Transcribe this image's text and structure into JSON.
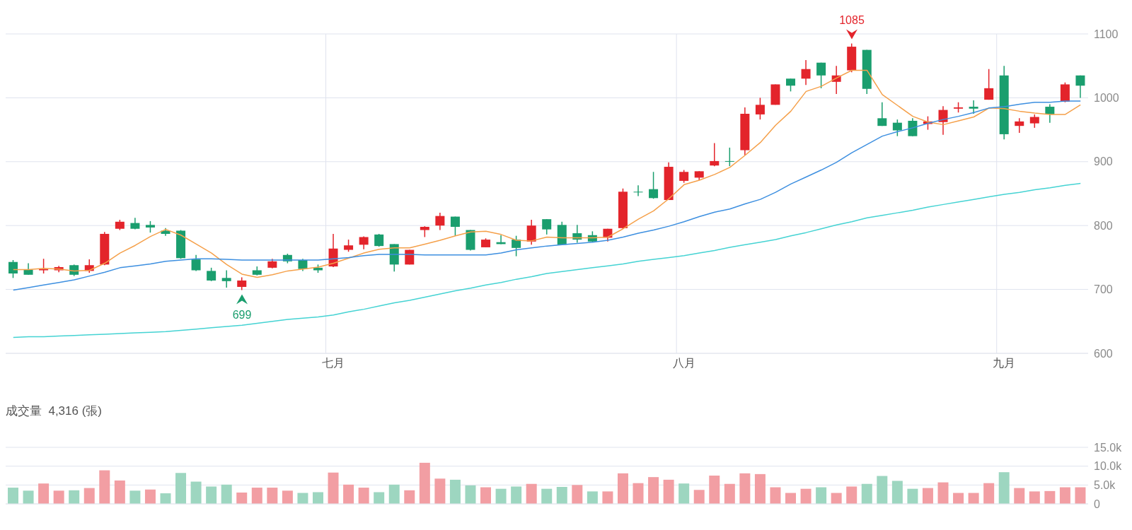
{
  "chart_data": [
    {
      "type": "candlestick",
      "categories": [
        null,
        null,
        null,
        null,
        null,
        null,
        null,
        null,
        null,
        null,
        null,
        null,
        null,
        null,
        null,
        null,
        null,
        null,
        null,
        null,
        null,
        "七月",
        null,
        null,
        null,
        null,
        null,
        null,
        null,
        null,
        null,
        null,
        null,
        null,
        null,
        null,
        null,
        null,
        null,
        null,
        null,
        null,
        null,
        null,
        "八月",
        null,
        null,
        null,
        null,
        null,
        null,
        null,
        null,
        null,
        null,
        null,
        null,
        null,
        null,
        null,
        null,
        null,
        null,
        null,
        null,
        "九月",
        null,
        null,
        null,
        null,
        null
      ],
      "ohlc": [
        [
          743,
          746,
          718,
          725
        ],
        [
          731,
          741,
          723,
          723
        ],
        [
          730,
          748,
          725,
          732
        ],
        [
          730,
          737,
          727,
          735
        ],
        [
          738,
          739,
          721,
          723
        ],
        [
          729,
          747,
          726,
          738
        ],
        [
          739,
          790,
          738,
          787
        ],
        [
          795,
          809,
          793,
          806
        ],
        [
          804,
          812,
          794,
          795
        ],
        [
          801,
          807,
          789,
          797
        ],
        [
          792,
          796,
          784,
          787
        ],
        [
          792,
          793,
          748,
          749
        ],
        [
          747,
          754,
          729,
          730
        ],
        [
          729,
          734,
          713,
          714
        ],
        [
          718,
          730,
          703,
          713
        ],
        [
          704,
          719,
          699,
          714
        ],
        [
          730,
          736,
          722,
          723
        ],
        [
          734,
          748,
          733,
          744
        ],
        [
          754,
          756,
          741,
          744
        ],
        [
          746,
          748,
          729,
          732
        ],
        [
          734,
          739,
          726,
          730
        ],
        [
          736,
          787,
          735,
          764
        ],
        [
          762,
          778,
          759,
          769
        ],
        [
          770,
          783,
          763,
          782
        ],
        [
          786,
          787,
          767,
          768
        ],
        [
          771,
          771,
          728,
          739
        ],
        [
          739,
          762,
          739,
          762
        ],
        [
          793,
          799,
          782,
          798
        ],
        [
          800,
          820,
          793,
          815
        ],
        [
          814,
          814,
          784,
          798
        ],
        [
          793,
          793,
          761,
          762
        ],
        [
          766,
          780,
          766,
          778
        ],
        [
          774,
          785,
          771,
          771
        ],
        [
          778,
          784,
          752,
          765
        ],
        [
          775,
          809,
          770,
          800
        ],
        [
          810,
          810,
          786,
          794
        ],
        [
          801,
          806,
          770,
          770
        ],
        [
          788,
          801,
          773,
          778
        ],
        [
          785,
          791,
          774,
          775
        ],
        [
          781,
          795,
          775,
          795
        ],
        [
          796,
          858,
          795,
          853
        ],
        [
          853,
          863,
          846,
          852
        ],
        [
          857,
          884,
          842,
          843
        ],
        [
          840,
          899,
          840,
          892
        ],
        [
          870,
          887,
          867,
          884
        ],
        [
          875,
          885,
          871,
          885
        ],
        [
          894,
          929,
          893,
          901
        ],
        [
          901,
          922,
          893,
          900
        ],
        [
          918,
          985,
          910,
          975
        ],
        [
          974,
          1000,
          966,
          989
        ],
        [
          989,
          1021,
          989,
          1021
        ],
        [
          1030,
          1030,
          1010,
          1019
        ],
        [
          1030,
          1059,
          1020,
          1045
        ],
        [
          1055,
          1055,
          1015,
          1035
        ],
        [
          1025,
          1050,
          1006,
          1035
        ],
        [
          1043,
          1085,
          1040,
          1080
        ],
        [
          1075,
          1075,
          1006,
          1014
        ],
        [
          968,
          993,
          956,
          956
        ],
        [
          961,
          966,
          940,
          949
        ],
        [
          964,
          968,
          940,
          940
        ],
        [
          959,
          971,
          950,
          963
        ],
        [
          962,
          987,
          942,
          981
        ],
        [
          983,
          993,
          977,
          985
        ],
        [
          986,
          996,
          975,
          983
        ],
        [
          997,
          1045,
          997,
          1015
        ],
        [
          1035,
          1050,
          935,
          943
        ],
        [
          956,
          968,
          945,
          963
        ],
        [
          960,
          974,
          953,
          970
        ],
        [
          986,
          990,
          961,
          974
        ],
        [
          994,
          1024,
          993,
          1021
        ],
        [
          1035,
          1035,
          1000,
          1019
        ]
      ],
      "colors": [
        "#1a9e6e",
        "#1a9e6e",
        "#e3242b",
        "#e3242b",
        "#1a9e6e",
        "#e3242b",
        "#e3242b",
        "#e3242b",
        "#1a9e6e",
        "#1a9e6e",
        "#1a9e6e",
        "#1a9e6e",
        "#1a9e6e",
        "#1a9e6e",
        "#1a9e6e",
        "#e3242b",
        "#1a9e6e",
        "#e3242b",
        "#1a9e6e",
        "#1a9e6e",
        "#1a9e6e",
        "#e3242b",
        "#e3242b",
        "#e3242b",
        "#1a9e6e",
        "#1a9e6e",
        "#e3242b",
        "#e3242b",
        "#e3242b",
        "#1a9e6e",
        "#1a9e6e",
        "#e3242b",
        "#1a9e6e",
        "#1a9e6e",
        "#e3242b",
        "#1a9e6e",
        "#1a9e6e",
        "#1a9e6e",
        "#1a9e6e",
        "#e3242b",
        "#e3242b",
        "#1a9e6e",
        "#1a9e6e",
        "#e3242b",
        "#e3242b",
        "#e3242b",
        "#e3242b",
        "#1a9e6e",
        "#e3242b",
        "#e3242b",
        "#e3242b",
        "#1a9e6e",
        "#e3242b",
        "#1a9e6e",
        "#e3242b",
        "#e3242b",
        "#1a9e6e",
        "#1a9e6e",
        "#1a9e6e",
        "#1a9e6e",
        "#e3242b",
        "#e3242b",
        "#e3242b",
        "#1a9e6e",
        "#e3242b",
        "#1a9e6e",
        "#e3242b",
        "#e3242b",
        "#1a9e6e",
        "#e3242b",
        "#1a9e6e"
      ],
      "series": [
        {
          "type": "line",
          "color": "#f5a04a",
          "values": [
            731,
            731,
            733,
            732,
            729,
            730,
            741,
            757,
            769,
            783,
            794,
            785,
            771,
            757,
            739,
            724,
            719,
            723,
            729,
            732,
            735,
            741,
            749,
            757,
            763,
            765,
            765,
            771,
            777,
            784,
            790,
            791,
            786,
            777,
            776,
            782,
            781,
            781,
            781,
            782,
            795,
            810,
            823,
            842,
            864,
            871,
            880,
            891,
            910,
            930,
            957,
            979,
            1010,
            1018,
            1031,
            1043,
            1043,
            1005,
            988,
            971,
            962,
            958,
            964,
            970,
            984,
            983,
            979,
            976,
            974,
            974,
            989
          ]
        },
        {
          "type": "line",
          "color": "#3d8fe0",
          "values": [
            699,
            703,
            707,
            711,
            715,
            721,
            727,
            734,
            737,
            740,
            744,
            746,
            748,
            748,
            747,
            746,
            746,
            746,
            746,
            746,
            746,
            748,
            750,
            753,
            755,
            755,
            755,
            754,
            754,
            754,
            754,
            754,
            757,
            762,
            765,
            768,
            770,
            772,
            774,
            777,
            782,
            788,
            793,
            799,
            806,
            814,
            821,
            826,
            834,
            841,
            852,
            865,
            876,
            887,
            899,
            914,
            927,
            940,
            947,
            953,
            960,
            966,
            971,
            977,
            984,
            986,
            990,
            993,
            993,
            995,
            995
          ]
        },
        {
          "type": "line",
          "color": "#45d3d3",
          "values": [
            625,
            626,
            626,
            627,
            628,
            629,
            630,
            631,
            632,
            633,
            634,
            636,
            638,
            640,
            642,
            644,
            647,
            650,
            653,
            655,
            657,
            660,
            665,
            669,
            674,
            679,
            683,
            688,
            693,
            698,
            702,
            707,
            711,
            716,
            720,
            725,
            728,
            731,
            734,
            737,
            740,
            744,
            747,
            750,
            753,
            757,
            761,
            766,
            770,
            774,
            778,
            784,
            789,
            795,
            801,
            806,
            812,
            816,
            820,
            824,
            829,
            833,
            837,
            841,
            845,
            849,
            852,
            856,
            859,
            863,
            866
          ]
        }
      ],
      "ylim": [
        600,
        1100
      ],
      "yticks": [
        600,
        700,
        800,
        900,
        1000,
        1100
      ],
      "grid": true,
      "annotations": [
        {
          "text": "1085",
          "y": 1085
        },
        {
          "text": "699",
          "y": 699
        }
      ]
    },
    {
      "type": "bar",
      "title": "成交量  4,316 (張)",
      "categories": [
        null,
        null,
        null,
        null,
        null,
        null,
        null,
        null,
        null,
        null,
        null,
        null,
        null,
        null,
        null,
        null,
        null,
        null,
        null,
        null,
        null,
        null,
        null,
        null,
        null,
        null,
        null,
        null,
        null,
        null,
        null,
        null,
        null,
        null,
        null,
        null,
        null,
        null,
        null,
        null,
        null,
        null,
        null,
        null,
        null,
        null,
        null,
        null,
        null,
        null,
        null,
        null,
        null,
        null,
        null,
        null,
        null,
        null,
        null,
        null,
        null,
        null,
        null,
        null,
        null,
        null,
        null,
        null,
        null,
        null,
        null
      ],
      "values": [
        4300,
        3500,
        5400,
        3500,
        3600,
        4200,
        8900,
        6200,
        3500,
        3800,
        2800,
        8200,
        5900,
        4600,
        5100,
        3000,
        4300,
        4300,
        3500,
        2900,
        3100,
        8300,
        5100,
        4300,
        3100,
        5100,
        3600,
        10900,
        6700,
        6400,
        4900,
        4400,
        4000,
        4600,
        5300,
        4000,
        4500,
        5000,
        3300,
        3300,
        8100,
        5500,
        7100,
        6400,
        5400,
        3700,
        7500,
        5300,
        8100,
        7900,
        4400,
        2900,
        4000,
        4400,
        2900,
        4600,
        5300,
        7400,
        6100,
        4000,
        4200,
        5700,
        2900,
        2900,
        5500,
        8400,
        4200,
        3300,
        3400,
        4400,
        4400
      ],
      "colors": [
        "#9dd6c0",
        "#9dd6c0",
        "#f29ea3",
        "#f29ea3",
        "#9dd6c0",
        "#f29ea3",
        "#f29ea3",
        "#f29ea3",
        "#9dd6c0",
        "#f29ea3",
        "#9dd6c0",
        "#9dd6c0",
        "#9dd6c0",
        "#9dd6c0",
        "#9dd6c0",
        "#f29ea3",
        "#f29ea3",
        "#f29ea3",
        "#f29ea3",
        "#9dd6c0",
        "#9dd6c0",
        "#f29ea3",
        "#f29ea3",
        "#f29ea3",
        "#9dd6c0",
        "#9dd6c0",
        "#f29ea3",
        "#f29ea3",
        "#f29ea3",
        "#9dd6c0",
        "#9dd6c0",
        "#f29ea3",
        "#9dd6c0",
        "#9dd6c0",
        "#f29ea3",
        "#9dd6c0",
        "#9dd6c0",
        "#f29ea3",
        "#9dd6c0",
        "#f29ea3",
        "#f29ea3",
        "#f29ea3",
        "#f29ea3",
        "#f29ea3",
        "#9dd6c0",
        "#f29ea3",
        "#f29ea3",
        "#f29ea3",
        "#f29ea3",
        "#f29ea3",
        "#f29ea3",
        "#f29ea3",
        "#f29ea3",
        "#9dd6c0",
        "#f29ea3",
        "#f29ea3",
        "#9dd6c0",
        "#9dd6c0",
        "#9dd6c0",
        "#9dd6c0",
        "#f29ea3",
        "#f29ea3",
        "#f29ea3",
        "#f29ea3",
        "#f29ea3",
        "#9dd6c0",
        "#f29ea3",
        "#f29ea3",
        "#f29ea3",
        "#f29ea3",
        "#f29ea3"
      ],
      "ylim": [
        0,
        15000
      ],
      "yticks": [
        0,
        {
          "value": 5000,
          "label": "5.0k"
        },
        {
          "value": 10000,
          "label": "10.0k"
        },
        {
          "value": 15000,
          "label": "15.0k"
        }
      ],
      "grid": "y",
      "tick_labels": "y"
    }
  ]
}
